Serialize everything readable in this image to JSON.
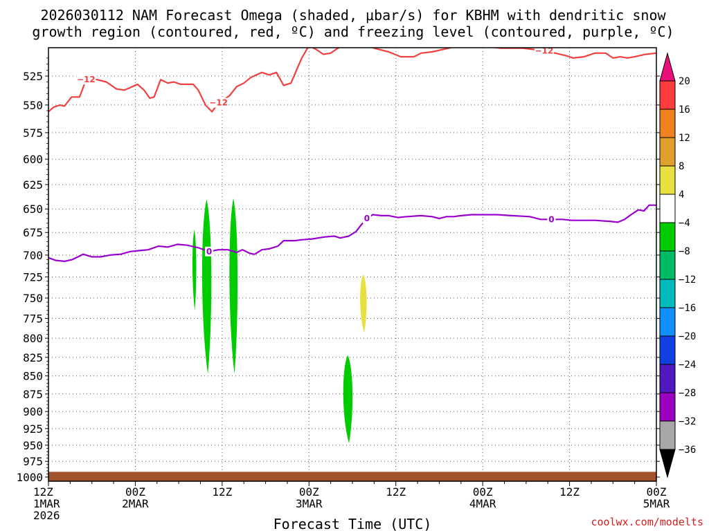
{
  "chart_data": {
    "type": "heatmap",
    "title_lines": [
      "2026030112 NAM Forecast Omega (shaded, μbar/s) for KBHM with dendritic snow",
      "growth region (contoured, red, ºC) and freezing level (contoured, purple, ºC)"
    ],
    "xlabel": "Forecast Time (UTC)",
    "credit": "coolwx.com/modelts",
    "x_unit": "forecast hours from 2026-03-01 12Z",
    "xlim": [
      0,
      84
    ],
    "ylim": [
      1000,
      500
    ],
    "grid": true,
    "x_ticks": [
      {
        "h": 0,
        "lines": [
          "12Z",
          "1MAR",
          "2026"
        ]
      },
      {
        "h": 12,
        "lines": [
          "00Z",
          "2MAR"
        ]
      },
      {
        "h": 24,
        "lines": [
          "12Z"
        ]
      },
      {
        "h": 36,
        "lines": [
          "00Z",
          "3MAR"
        ]
      },
      {
        "h": 48,
        "lines": [
          "12Z"
        ]
      },
      {
        "h": 60,
        "lines": [
          "00Z",
          "4MAR"
        ]
      },
      {
        "h": 72,
        "lines": [
          "12Z"
        ]
      },
      {
        "h": 84,
        "lines": [
          "00Z",
          "5MAR"
        ]
      }
    ],
    "y_ticks": [
      525,
      550,
      575,
      600,
      625,
      650,
      675,
      700,
      725,
      750,
      775,
      800,
      825,
      850,
      875,
      900,
      925,
      950,
      975,
      1000
    ],
    "colorbar": {
      "labels": [
        "20",
        "16",
        "12",
        "8",
        "4",
        "−4",
        "−8",
        "−12",
        "−16",
        "−20",
        "−24",
        "−28",
        "−32",
        "−36"
      ],
      "top_arrow_color": "#e8107a",
      "bins_top_to_bottom": [
        "#ff3d3d",
        "#f08020",
        "#e0a030",
        "#e8e040",
        "#ffffff",
        "#00cc00",
        "#00bb66",
        "#00bbbb",
        "#1090ff",
        "#1040e0",
        "#5018c0",
        "#9b00c0",
        "#a8a8a8"
      ],
      "bottom_arrow_color": "#000000"
    },
    "series": [
      {
        "name": "-12 (dendritic snow growth)",
        "color": "#f04040",
        "label": "−12",
        "label_at_h": [
          5.5,
          24.0,
          68.5
        ],
        "points": [
          [
            0,
            556
          ],
          [
            0.7,
            552
          ],
          [
            1.6,
            550
          ],
          [
            2.2,
            551
          ],
          [
            3.2,
            543
          ],
          [
            4.3,
            543
          ],
          [
            5.2,
            528
          ],
          [
            6.0,
            527
          ],
          [
            8.0,
            530
          ],
          [
            9.4,
            536
          ],
          [
            10.5,
            537
          ],
          [
            11.6,
            534
          ],
          [
            12.3,
            532
          ],
          [
            13.2,
            537
          ],
          [
            14.0,
            544
          ],
          [
            14.6,
            543
          ],
          [
            15.5,
            528
          ],
          [
            16.5,
            531
          ],
          [
            17.3,
            530
          ],
          [
            18.3,
            532
          ],
          [
            20.0,
            532
          ],
          [
            20.7,
            537
          ],
          [
            21.7,
            550
          ],
          [
            22.6,
            556
          ],
          [
            23.5,
            548
          ],
          [
            25.0,
            542
          ],
          [
            26.0,
            534
          ],
          [
            27.0,
            531
          ],
          [
            28.0,
            526
          ],
          [
            29.5,
            522
          ],
          [
            30.5,
            524
          ],
          [
            31.5,
            522
          ],
          [
            32.5,
            533
          ],
          [
            33.5,
            531
          ],
          [
            35.0,
            510
          ],
          [
            36.0,
            500
          ],
          [
            37.0,
            503
          ],
          [
            38.0,
            507
          ],
          [
            39.0,
            506
          ],
          [
            40.5,
            500
          ],
          [
            42.0,
            500
          ],
          [
            43.5,
            497
          ],
          [
            45.0,
            502
          ],
          [
            47.0,
            505
          ],
          [
            48.7,
            509
          ],
          [
            49.5,
            509
          ],
          [
            50.5,
            509
          ],
          [
            51.5,
            506
          ],
          [
            53.0,
            505
          ],
          [
            54.5,
            503
          ],
          [
            56.0,
            501
          ],
          [
            57.5,
            497
          ],
          [
            58.5,
            497
          ],
          [
            60.0,
            499
          ],
          [
            61.0,
            501
          ],
          [
            62.5,
            502
          ],
          [
            64.0,
            502
          ],
          [
            65.5,
            502
          ],
          [
            67.0,
            503
          ],
          [
            68.5,
            504
          ],
          [
            70.0,
            506
          ],
          [
            71.5,
            508
          ],
          [
            72.5,
            510
          ],
          [
            74.0,
            509
          ],
          [
            75.5,
            506
          ],
          [
            77.0,
            506
          ],
          [
            78.0,
            510
          ],
          [
            79.0,
            509
          ],
          [
            80.0,
            510
          ],
          [
            81.0,
            509
          ],
          [
            82.5,
            507
          ],
          [
            84.0,
            506
          ]
        ]
      },
      {
        "name": "0 (freezing level)",
        "color": "#9900cc",
        "label": "0",
        "label_at_h": [
          22.0,
          44.0,
          70.0
        ],
        "points": [
          [
            0,
            703
          ],
          [
            1.0,
            706
          ],
          [
            2.2,
            707
          ],
          [
            3.3,
            705
          ],
          [
            4.8,
            699
          ],
          [
            6.0,
            702
          ],
          [
            7.2,
            702
          ],
          [
            8.5,
            700
          ],
          [
            10.0,
            699
          ],
          [
            11.3,
            696
          ],
          [
            12.5,
            695
          ],
          [
            13.8,
            694
          ],
          [
            15.2,
            690
          ],
          [
            16.5,
            691
          ],
          [
            17.8,
            688
          ],
          [
            19.2,
            689
          ],
          [
            20.8,
            692
          ],
          [
            22.2,
            696
          ],
          [
            23.5,
            694
          ],
          [
            24.8,
            694
          ],
          [
            26.0,
            697
          ],
          [
            26.8,
            694
          ],
          [
            27.8,
            698
          ],
          [
            28.5,
            699
          ],
          [
            29.5,
            694
          ],
          [
            30.5,
            693
          ],
          [
            31.7,
            690
          ],
          [
            32.5,
            684
          ],
          [
            34.0,
            684
          ],
          [
            35.0,
            683
          ],
          [
            36.5,
            682
          ],
          [
            38.0,
            680
          ],
          [
            39.5,
            679
          ],
          [
            40.3,
            681
          ],
          [
            41.5,
            679
          ],
          [
            42.5,
            674
          ],
          [
            43.3,
            666
          ],
          [
            44.0,
            660
          ],
          [
            44.8,
            656
          ],
          [
            46.0,
            657
          ],
          [
            47.0,
            657
          ],
          [
            48.3,
            659
          ],
          [
            49.5,
            658
          ],
          [
            51.5,
            657
          ],
          [
            53.0,
            658
          ],
          [
            54.0,
            660
          ],
          [
            55.0,
            658
          ],
          [
            56.0,
            658
          ],
          [
            57.0,
            657
          ],
          [
            58.5,
            656
          ],
          [
            60.0,
            656
          ],
          [
            62.0,
            656
          ],
          [
            64.0,
            657
          ],
          [
            66.5,
            658
          ],
          [
            68.0,
            661
          ],
          [
            69.5,
            661
          ],
          [
            71.0,
            661
          ],
          [
            72.3,
            662
          ],
          [
            74.0,
            662
          ],
          [
            75.5,
            662
          ],
          [
            77.5,
            663
          ],
          [
            78.7,
            664
          ],
          [
            79.6,
            661
          ],
          [
            80.5,
            656
          ],
          [
            81.5,
            651
          ],
          [
            82.3,
            652
          ],
          [
            83.0,
            646
          ],
          [
            84.0,
            646
          ]
        ]
      }
    ],
    "shaded_regions": [
      {
        "bin": "-4 to -8",
        "color": "#00cc00",
        "x_range_h": [
          19.8,
          20.5
        ],
        "p_range": [
          672,
          765
        ]
      },
      {
        "bin": "-4 to -8",
        "color": "#00cc00",
        "x_range_h": [
          21.0,
          22.7
        ],
        "p_range": [
          640,
          847
        ]
      },
      {
        "bin": "-4 to -8",
        "color": "#00cc00",
        "x_range_h": [
          24.8,
          26.3
        ],
        "p_range": [
          639,
          847
        ]
      },
      {
        "bin": "4 to 8",
        "color": "#e8e040",
        "x_range_h": [
          42.9,
          44.1
        ],
        "p_range": [
          722,
          793
        ]
      },
      {
        "bin": "-4 to -8",
        "color": "#00cc00",
        "x_range_h": [
          40.5,
          42.2
        ],
        "p_range": [
          822,
          947
        ]
      }
    ],
    "terrain": {
      "color": "#a0522d",
      "p_top": 996
    }
  }
}
